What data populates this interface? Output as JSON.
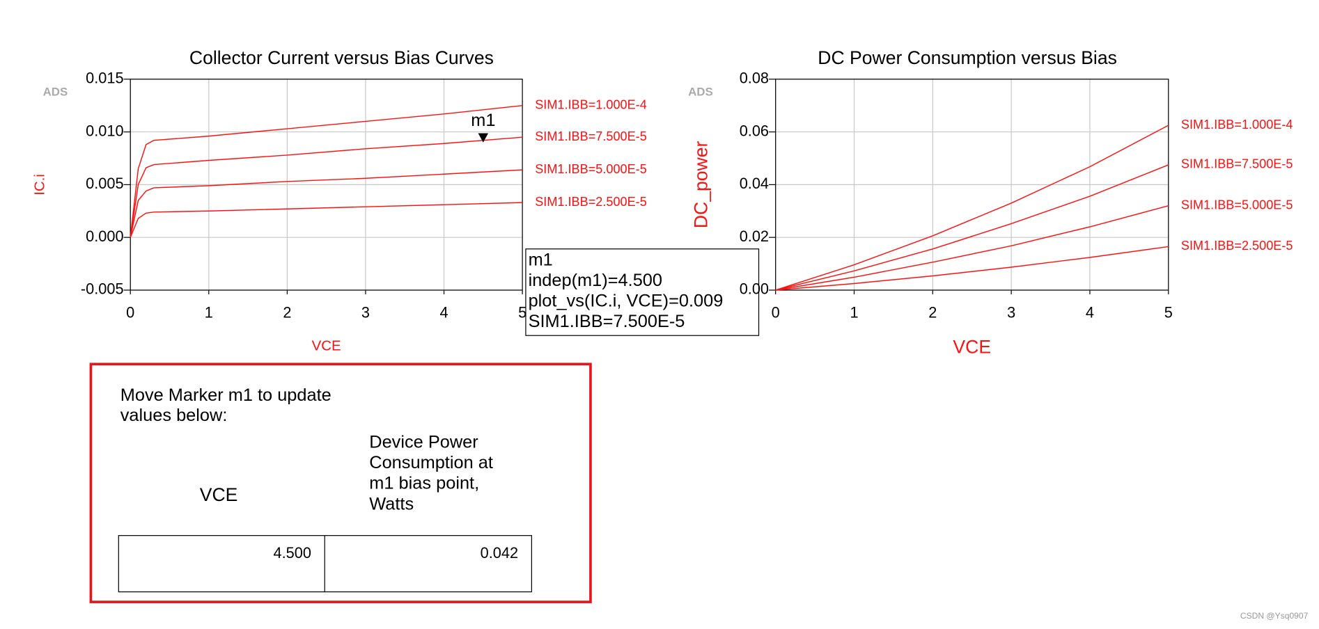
{
  "chart_data": [
    {
      "type": "line",
      "title": "Collector Current versus Bias Curves",
      "watermark": "ADS",
      "x_label": "VCE",
      "y_label": "IC.i",
      "x": [
        0,
        0.1,
        0.2,
        0.3,
        1,
        2,
        3,
        4,
        5
      ],
      "series": [
        {
          "name": "SIM1.IBB=1.000E-4",
          "color": "#ff1010",
          "values": [
            0,
            0.0065,
            0.0088,
            0.0092,
            0.0096,
            0.0103,
            0.011,
            0.0117,
            0.0125
          ]
        },
        {
          "name": "SIM1.IBB=7.500E-5",
          "color": "#ff1010",
          "values": [
            0,
            0.005,
            0.0066,
            0.0069,
            0.0073,
            0.0078,
            0.0084,
            0.0089,
            0.0095
          ]
        },
        {
          "name": "SIM1.IBB=5.000E-5",
          "color": "#ff1010",
          "values": [
            0,
            0.0035,
            0.0044,
            0.0047,
            0.0049,
            0.0053,
            0.0056,
            0.006,
            0.0064
          ]
        },
        {
          "name": "SIM1.IBB=2.500E-5",
          "color": "#ff1010",
          "values": [
            0,
            0.0018,
            0.0023,
            0.0024,
            0.0025,
            0.0027,
            0.0029,
            0.0031,
            0.0033
          ]
        }
      ],
      "xlim": [
        0,
        5
      ],
      "xticks": [
        0,
        1,
        2,
        3,
        4,
        5
      ],
      "ylim": [
        -0.005,
        0.015
      ],
      "yticks": [
        {
          "value": -0.005,
          "label": "-0.005"
        },
        {
          "value": 0,
          "label": "0.000"
        },
        {
          "value": 0.005,
          "label": "0.005"
        },
        {
          "value": 0.01,
          "label": "0.010"
        },
        {
          "value": 0.015,
          "label": "0.015"
        }
      ],
      "grid": true,
      "marker": {
        "label": "m1",
        "x": 4.5,
        "y": 0.009,
        "readout": [
          "m1",
          "indep(m1)=4.500",
          "plot_vs(IC.i, VCE)=0.009",
          "SIM1.IBB=7.500E-5"
        ]
      }
    },
    {
      "type": "line",
      "title": "DC Power Consumption versus Bias",
      "watermark": "ADS",
      "x_label": "VCE",
      "y_label": "DC_power",
      "x": [
        0,
        1,
        2,
        3,
        4,
        5
      ],
      "series": [
        {
          "name": "SIM1.IBB=1.000E-4",
          "color": "#ff1010",
          "values": [
            0,
            0.0096,
            0.0206,
            0.033,
            0.0468,
            0.0625
          ]
        },
        {
          "name": "SIM1.IBB=7.500E-5",
          "color": "#ff1010",
          "values": [
            0,
            0.0073,
            0.0156,
            0.0252,
            0.0356,
            0.0475
          ]
        },
        {
          "name": "SIM1.IBB=5.000E-5",
          "color": "#ff1010",
          "values": [
            0,
            0.0049,
            0.0106,
            0.0168,
            0.024,
            0.032
          ]
        },
        {
          "name": "SIM1.IBB=2.500E-5",
          "color": "#ff1010",
          "values": [
            0,
            0.0025,
            0.0054,
            0.0087,
            0.0124,
            0.0165
          ]
        }
      ],
      "xlim": [
        0,
        5
      ],
      "xticks": [
        0,
        1,
        2,
        3,
        4,
        5
      ],
      "ylim": [
        0,
        0.08
      ],
      "yticks": [
        {
          "value": 0,
          "label": "0.00"
        },
        {
          "value": 0.02,
          "label": "0.02"
        },
        {
          "value": 0.04,
          "label": "0.04"
        },
        {
          "value": 0.06,
          "label": "0.06"
        },
        {
          "value": 0.08,
          "label": "0.08"
        }
      ],
      "grid": true
    }
  ],
  "panel": {
    "instruction": [
      "Move Marker m1 to update",
      "values below:"
    ],
    "headers": [
      [
        "VCE"
      ],
      [
        "Device Power",
        "Consumption at",
        "m1 bias point,",
        "Watts"
      ]
    ],
    "values": [
      "4.500",
      "0.042"
    ]
  },
  "footer": "CSDN @Ysq0907"
}
